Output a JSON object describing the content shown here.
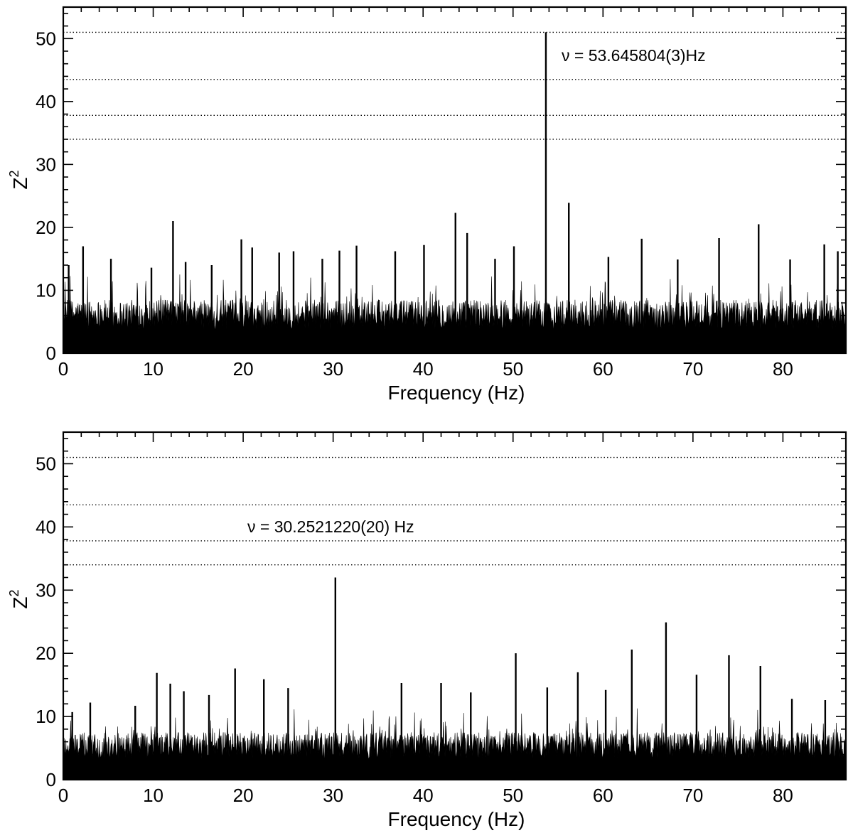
{
  "chart_data": [
    {
      "type": "line",
      "title": "",
      "xlabel": "Frequency (Hz)",
      "ylabel": "Z",
      "ylabel_superscript": "2",
      "xlim": [
        0,
        87
      ],
      "ylim": [
        0,
        55
      ],
      "x_ticks": [
        "0",
        "10",
        "20",
        "30",
        "40",
        "50",
        "60",
        "70",
        "80"
      ],
      "y_ticks": [
        "0",
        "10",
        "20",
        "30",
        "40",
        "50"
      ],
      "threshold_lines": [
        51.0,
        43.5,
        37.8,
        34.0
      ],
      "annotation": "ν = 53.645804(3)Hz",
      "noise_level": 8.5,
      "grid": false,
      "peaks": [
        {
          "x": 0.6,
          "y": 14.0
        },
        {
          "x": 2.2,
          "y": 17.0
        },
        {
          "x": 5.3,
          "y": 15.0
        },
        {
          "x": 9.8,
          "y": 13.6
        },
        {
          "x": 12.2,
          "y": 21.0
        },
        {
          "x": 13.6,
          "y": 14.5
        },
        {
          "x": 16.5,
          "y": 14.0
        },
        {
          "x": 19.8,
          "y": 18.1
        },
        {
          "x": 21.0,
          "y": 16.8
        },
        {
          "x": 24.0,
          "y": 16.0
        },
        {
          "x": 25.6,
          "y": 16.2
        },
        {
          "x": 28.8,
          "y": 15.0
        },
        {
          "x": 30.7,
          "y": 16.3
        },
        {
          "x": 32.6,
          "y": 17.1
        },
        {
          "x": 36.9,
          "y": 16.2
        },
        {
          "x": 40.1,
          "y": 17.2
        },
        {
          "x": 43.6,
          "y": 22.3
        },
        {
          "x": 44.9,
          "y": 19.1
        },
        {
          "x": 48.0,
          "y": 15.0
        },
        {
          "x": 50.1,
          "y": 17.0
        },
        {
          "x": 53.65,
          "y": 51.0
        },
        {
          "x": 56.2,
          "y": 23.9
        },
        {
          "x": 60.6,
          "y": 15.3
        },
        {
          "x": 64.3,
          "y": 18.2
        },
        {
          "x": 68.3,
          "y": 14.9
        },
        {
          "x": 72.9,
          "y": 18.3
        },
        {
          "x": 77.3,
          "y": 20.5
        },
        {
          "x": 80.8,
          "y": 14.9
        },
        {
          "x": 84.6,
          "y": 17.3
        },
        {
          "x": 86.1,
          "y": 16.2
        }
      ]
    },
    {
      "type": "line",
      "title": "",
      "xlabel": "Frequency (Hz)",
      "ylabel": "Z",
      "ylabel_superscript": "2",
      "xlim": [
        0,
        87
      ],
      "ylim": [
        0,
        55
      ],
      "x_ticks": [
        "0",
        "10",
        "20",
        "30",
        "40",
        "50",
        "60",
        "70",
        "80"
      ],
      "y_ticks": [
        "0",
        "10",
        "20",
        "30",
        "40",
        "50"
      ],
      "threshold_lines": [
        51.0,
        43.5,
        37.8,
        34.0
      ],
      "annotation": "ν = 30.2521220(20) Hz",
      "noise_level": 7.5,
      "grid": false,
      "peaks": [
        {
          "x": 1.0,
          "y": 10.7
        },
        {
          "x": 3.0,
          "y": 12.2
        },
        {
          "x": 8.0,
          "y": 11.7
        },
        {
          "x": 10.4,
          "y": 16.9
        },
        {
          "x": 11.9,
          "y": 15.2
        },
        {
          "x": 13.4,
          "y": 14.0
        },
        {
          "x": 16.2,
          "y": 13.4
        },
        {
          "x": 19.1,
          "y": 17.6
        },
        {
          "x": 22.3,
          "y": 15.9
        },
        {
          "x": 25.0,
          "y": 14.5
        },
        {
          "x": 30.25,
          "y": 32.0
        },
        {
          "x": 37.6,
          "y": 15.3
        },
        {
          "x": 42.0,
          "y": 15.3
        },
        {
          "x": 45.3,
          "y": 13.8
        },
        {
          "x": 50.3,
          "y": 20.0
        },
        {
          "x": 53.8,
          "y": 14.6
        },
        {
          "x": 57.2,
          "y": 17.0
        },
        {
          "x": 60.3,
          "y": 14.2
        },
        {
          "x": 63.2,
          "y": 20.6
        },
        {
          "x": 67.0,
          "y": 24.9
        },
        {
          "x": 70.4,
          "y": 16.6
        },
        {
          "x": 74.0,
          "y": 19.7
        },
        {
          "x": 77.5,
          "y": 18.0
        },
        {
          "x": 81.0,
          "y": 12.8
        },
        {
          "x": 84.7,
          "y": 12.6
        }
      ]
    }
  ]
}
